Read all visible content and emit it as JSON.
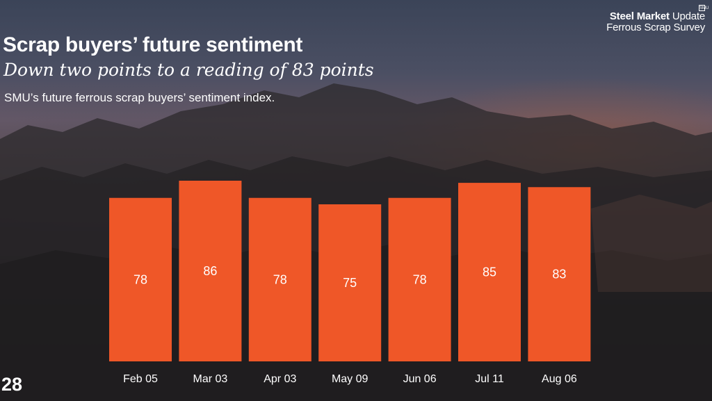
{
  "brand": {
    "name_bold": "Steel Market",
    "name_light": "Update",
    "survey": "Ferrous Scrap Survey",
    "mark": "SMU"
  },
  "slide": {
    "title": "Scrap buyers’ future sentiment",
    "subtitle": "Down two points to a reading of 83 points",
    "description": "SMU’s future ferrous scrap buyers’ sentiment index.",
    "page_number": "28"
  },
  "colors": {
    "bar": "#ef5728",
    "text": "#ffffff"
  },
  "chart_data": {
    "type": "bar",
    "title": "SMU’s future ferrous scrap buyers’ sentiment index.",
    "categories": [
      "Feb 05",
      "Mar 03",
      "Apr 03",
      "May 09",
      "Jun 06",
      "Jul 11",
      "Aug 06"
    ],
    "values": [
      78,
      86,
      78,
      75,
      78,
      85,
      83
    ],
    "xlabel": "",
    "ylabel": "",
    "ylim": [
      0,
      100
    ],
    "grid": false,
    "legend": "none",
    "data_labels": true
  }
}
